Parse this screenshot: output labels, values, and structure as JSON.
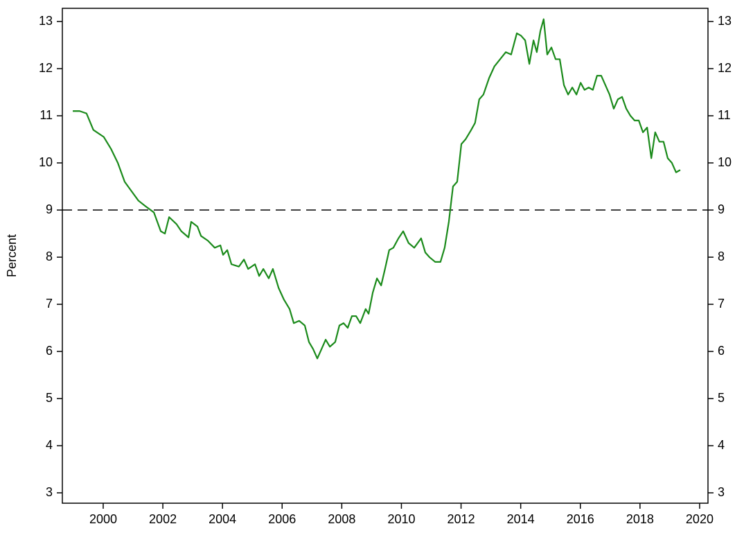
{
  "chart_data": {
    "type": "line",
    "y_label": "Percent",
    "x": [
      1998.98,
      1999.21,
      1999.44,
      1999.67,
      2000.02,
      2000.26,
      2000.49,
      2000.72,
      2000.95,
      2001.18,
      2001.42,
      2001.7,
      2001.93,
      2002.07,
      2002.21,
      2002.46,
      2002.62,
      2002.86,
      2002.95,
      2003.16,
      2003.28,
      2003.51,
      2003.74,
      2003.93,
      2004.02,
      2004.16,
      2004.3,
      2004.55,
      2004.72,
      2004.86,
      2005.09,
      2005.23,
      2005.37,
      2005.55,
      2005.69,
      2005.88,
      2006.06,
      2006.25,
      2006.39,
      2006.57,
      2006.76,
      2006.9,
      2007.04,
      2007.18,
      2007.32,
      2007.46,
      2007.6,
      2007.78,
      2007.92,
      2008.06,
      2008.2,
      2008.34,
      2008.48,
      2008.62,
      2008.8,
      2008.9,
      2009.04,
      2009.18,
      2009.32,
      2009.45,
      2009.59,
      2009.73,
      2009.9,
      2010.06,
      2010.24,
      2010.43,
      2010.66,
      2010.8,
      2010.94,
      2011.13,
      2011.31,
      2011.45,
      2011.59,
      2011.73,
      2011.87,
      2012.01,
      2012.15,
      2012.34,
      2012.47,
      2012.61,
      2012.75,
      2012.94,
      2013.12,
      2013.31,
      2013.5,
      2013.68,
      2013.87,
      2014.01,
      2014.15,
      2014.29,
      2014.43,
      2014.54,
      2014.66,
      2014.77,
      2014.89,
      2015.03,
      2015.17,
      2015.31,
      2015.45,
      2015.59,
      2015.73,
      2015.87,
      2016.01,
      2016.14,
      2016.28,
      2016.42,
      2016.56,
      2016.7,
      2016.84,
      2016.98,
      2017.12,
      2017.26,
      2017.4,
      2017.54,
      2017.68,
      2017.82,
      2017.96,
      2018.1,
      2018.24,
      2018.38,
      2018.51,
      2018.65,
      2018.79,
      2018.93,
      2019.07,
      2019.21,
      2019.35
    ],
    "series": [
      {
        "name": "Percent",
        "color": "#1a8a1a",
        "values": [
          11.1,
          11.1,
          11.05,
          10.7,
          10.55,
          10.3,
          10.0,
          9.6,
          9.4,
          9.2,
          9.08,
          8.95,
          8.55,
          8.5,
          8.85,
          8.7,
          8.55,
          8.42,
          8.75,
          8.65,
          8.45,
          8.35,
          8.2,
          8.25,
          8.05,
          8.15,
          7.85,
          7.8,
          7.95,
          7.75,
          7.85,
          7.6,
          7.75,
          7.55,
          7.75,
          7.35,
          7.1,
          6.9,
          6.6,
          6.65,
          6.55,
          6.2,
          6.05,
          5.85,
          6.05,
          6.25,
          6.1,
          6.2,
          6.55,
          6.6,
          6.5,
          6.75,
          6.75,
          6.6,
          6.9,
          6.8,
          7.25,
          7.55,
          7.4,
          7.75,
          8.15,
          8.2,
          8.4,
          8.55,
          8.3,
          8.2,
          8.4,
          8.1,
          8.0,
          7.9,
          7.9,
          8.2,
          8.75,
          9.5,
          9.6,
          10.4,
          10.5,
          10.7,
          10.85,
          11.35,
          11.45,
          11.8,
          12.05,
          12.2,
          12.35,
          12.3,
          12.75,
          12.7,
          12.6,
          12.1,
          12.6,
          12.35,
          12.8,
          13.05,
          12.3,
          12.45,
          12.2,
          12.2,
          11.65,
          11.45,
          11.6,
          11.45,
          11.7,
          11.55,
          11.6,
          11.55,
          11.85,
          11.85,
          11.65,
          11.45,
          11.15,
          11.35,
          11.4,
          11.15,
          11.0,
          10.9,
          10.9,
          10.65,
          10.75,
          10.1,
          10.65,
          10.45,
          10.45,
          10.1,
          10.0,
          9.8,
          9.85
        ]
      }
    ],
    "xlim": [
      1998.63,
      2020.28
    ],
    "xticks": [
      2000,
      2002,
      2004,
      2006,
      2008,
      2010,
      2012,
      2014,
      2016,
      2018,
      2020
    ],
    "ylim": [
      2.78,
      13.28
    ],
    "yticks": [
      3,
      4,
      5,
      6,
      7,
      8,
      9,
      10,
      11,
      12,
      13
    ],
    "y2lim": [
      2.78,
      13.28
    ],
    "y2ticks": [
      3,
      4,
      5,
      6,
      7,
      8,
      9,
      10,
      11,
      12,
      13
    ],
    "reference_line": 9,
    "grid": false
  }
}
